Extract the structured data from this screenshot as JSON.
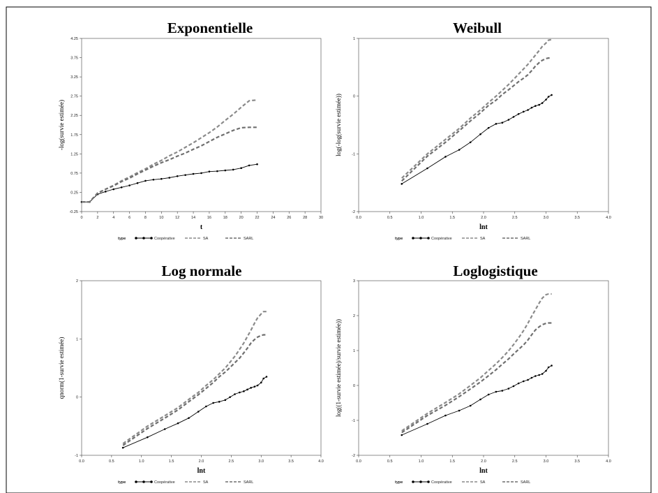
{
  "legend_title": "type",
  "series_names": [
    "Coopérative",
    "SA",
    "SARL"
  ],
  "colors": {
    "cooperative": "#000000",
    "sa": "#8a8a8a",
    "sarl": "#6f6f6f",
    "frame": "#000000",
    "axis": "#444444"
  },
  "chart_data": [
    {
      "type": "line",
      "title": "Exponentielle",
      "xlabel": "t",
      "ylabel": "-log(survie estimée)",
      "xlim": [
        0,
        30
      ],
      "ylim": [
        -0.25,
        4.25
      ],
      "xticks": [
        "0",
        "2",
        "4",
        "6",
        "8",
        "10",
        "12",
        "14",
        "16",
        "18",
        "20",
        "22",
        "24",
        "26",
        "28",
        "30"
      ],
      "yticks": [
        "-0.25",
        "0.25",
        "0.75",
        "1.25",
        "1.75",
        "2.25",
        "2.75",
        "3.25",
        "3.75",
        "4.25"
      ],
      "series": [
        {
          "name": "Coopérative",
          "x": [
            0,
            1,
            2,
            3,
            4,
            5,
            6,
            7,
            8,
            9,
            10,
            11,
            12,
            13,
            14,
            15,
            16,
            17,
            18,
            19,
            20,
            21,
            22
          ],
          "y": [
            0.0,
            0.0,
            0.2,
            0.27,
            0.33,
            0.38,
            0.43,
            0.49,
            0.55,
            0.58,
            0.6,
            0.63,
            0.67,
            0.7,
            0.73,
            0.75,
            0.79,
            0.8,
            0.82,
            0.84,
            0.88,
            0.95,
            0.98
          ]
        },
        {
          "name": "SA",
          "x": [
            0,
            1,
            2,
            3,
            4,
            5,
            6,
            7,
            8,
            9,
            10,
            11,
            12,
            13,
            14,
            15,
            16,
            17,
            18,
            19,
            20,
            21,
            22
          ],
          "y": [
            0.0,
            0.0,
            0.23,
            0.33,
            0.43,
            0.55,
            0.65,
            0.76,
            0.86,
            0.98,
            1.08,
            1.2,
            1.3,
            1.42,
            1.54,
            1.67,
            1.8,
            1.95,
            2.12,
            2.28,
            2.46,
            2.63,
            2.65
          ]
        },
        {
          "name": "SARL",
          "x": [
            0,
            1,
            2,
            3,
            4,
            5,
            6,
            7,
            8,
            9,
            10,
            11,
            12,
            13,
            14,
            15,
            16,
            17,
            18,
            19,
            20,
            21,
            22
          ],
          "y": [
            0.0,
            0.0,
            0.23,
            0.33,
            0.42,
            0.53,
            0.62,
            0.73,
            0.83,
            0.93,
            1.02,
            1.1,
            1.19,
            1.27,
            1.37,
            1.46,
            1.57,
            1.68,
            1.77,
            1.86,
            1.93,
            1.94,
            1.94
          ]
        }
      ]
    },
    {
      "type": "line",
      "title": "Weibull",
      "xlabel": "lnt",
      "ylabel": "log(-log(survie estimée))",
      "xlim": [
        0.0,
        4.0
      ],
      "ylim": [
        -2,
        1
      ],
      "xticks": [
        "0.0",
        "0.5",
        "1.0",
        "1.5",
        "2.0",
        "2.5",
        "3.0",
        "3.5",
        "4.0"
      ],
      "yticks": [
        "-2",
        "-1",
        "0",
        "1"
      ],
      "series": [
        {
          "name": "Coopérative",
          "x": [
            0.69,
            1.1,
            1.39,
            1.61,
            1.79,
            1.95,
            2.08,
            2.2,
            2.3,
            2.4,
            2.48,
            2.56,
            2.64,
            2.71,
            2.77,
            2.83,
            2.89,
            2.94,
            3.0,
            3.04,
            3.09
          ],
          "y": [
            -1.52,
            -1.25,
            -1.05,
            -0.93,
            -0.8,
            -0.66,
            -0.55,
            -0.48,
            -0.46,
            -0.41,
            -0.36,
            -0.31,
            -0.27,
            -0.24,
            -0.2,
            -0.17,
            -0.15,
            -0.12,
            -0.06,
            -0.01,
            0.02
          ]
        },
        {
          "name": "SA",
          "x": [
            0.69,
            1.1,
            1.39,
            1.61,
            1.79,
            1.95,
            2.08,
            2.2,
            2.3,
            2.4,
            2.48,
            2.56,
            2.64,
            2.71,
            2.77,
            2.83,
            2.89,
            2.94,
            3.0,
            3.04,
            3.09
          ],
          "y": [
            -1.42,
            -1.0,
            -0.75,
            -0.56,
            -0.38,
            -0.24,
            -0.11,
            0.0,
            0.1,
            0.2,
            0.29,
            0.38,
            0.47,
            0.55,
            0.63,
            0.71,
            0.79,
            0.86,
            0.92,
            0.97,
            0.98
          ]
        },
        {
          "name": "SARL",
          "x": [
            0.69,
            1.1,
            1.39,
            1.61,
            1.79,
            1.95,
            2.08,
            2.2,
            2.3,
            2.4,
            2.48,
            2.56,
            2.64,
            2.71,
            2.77,
            2.83,
            2.89,
            2.94,
            3.0,
            3.04,
            3.09
          ],
          "y": [
            -1.47,
            -1.04,
            -0.8,
            -0.6,
            -0.43,
            -0.29,
            -0.16,
            -0.07,
            0.03,
            0.11,
            0.18,
            0.25,
            0.31,
            0.37,
            0.44,
            0.52,
            0.58,
            0.62,
            0.65,
            0.66,
            0.66
          ]
        }
      ]
    },
    {
      "type": "line",
      "title": "Log normale",
      "xlabel": "lnt",
      "ylabel": "qnorm(1-survie estimée)",
      "xlim": [
        0.0,
        4.0
      ],
      "ylim": [
        -1,
        2
      ],
      "xticks": [
        "0.0",
        "0.5",
        "1.0",
        "1.5",
        "2.0",
        "2.5",
        "3.0",
        "3.5",
        "4.0"
      ],
      "yticks": [
        "-1",
        "0",
        "1",
        "2"
      ],
      "series": [
        {
          "name": "Coopérative",
          "x": [
            0.69,
            1.1,
            1.39,
            1.61,
            1.79,
            1.95,
            2.08,
            2.2,
            2.3,
            2.4,
            2.48,
            2.56,
            2.64,
            2.71,
            2.77,
            2.83,
            2.89,
            2.94,
            3.0,
            3.04,
            3.09
          ],
          "y": [
            -0.87,
            -0.69,
            -0.55,
            -0.45,
            -0.36,
            -0.25,
            -0.16,
            -0.1,
            -0.08,
            -0.05,
            0.0,
            0.05,
            0.08,
            0.1,
            0.13,
            0.16,
            0.18,
            0.2,
            0.25,
            0.32,
            0.35
          ]
        },
        {
          "name": "SA",
          "x": [
            0.69,
            1.1,
            1.39,
            1.61,
            1.79,
            1.95,
            2.08,
            2.2,
            2.3,
            2.4,
            2.48,
            2.56,
            2.64,
            2.71,
            2.77,
            2.83,
            2.89,
            2.94,
            3.0,
            3.04,
            3.09
          ],
          "y": [
            -0.8,
            -0.5,
            -0.32,
            -0.18,
            -0.04,
            0.08,
            0.2,
            0.3,
            0.4,
            0.5,
            0.6,
            0.7,
            0.82,
            0.93,
            1.04,
            1.15,
            1.27,
            1.36,
            1.43,
            1.47,
            1.47
          ]
        },
        {
          "name": "SARL",
          "x": [
            0.69,
            1.1,
            1.39,
            1.61,
            1.79,
            1.95,
            2.08,
            2.2,
            2.3,
            2.4,
            2.48,
            2.56,
            2.64,
            2.71,
            2.77,
            2.83,
            2.89,
            2.94,
            3.0,
            3.04,
            3.09
          ],
          "y": [
            -0.83,
            -0.54,
            -0.36,
            -0.22,
            -0.08,
            0.04,
            0.15,
            0.25,
            0.35,
            0.43,
            0.51,
            0.59,
            0.67,
            0.76,
            0.84,
            0.93,
            0.99,
            1.03,
            1.06,
            1.07,
            1.07
          ]
        }
      ]
    },
    {
      "type": "line",
      "title": "Loglogistique",
      "xlabel": "lnt",
      "ylabel": "log((1-survie estimée)/survie estimée))",
      "xlim": [
        0.0,
        4.0
      ],
      "ylim": [
        -2,
        3
      ],
      "xticks": [
        "0.0",
        "0.5",
        "1.0",
        "1.5",
        "2.0",
        "2.5",
        "3.0",
        "3.5",
        "4.0"
      ],
      "yticks": [
        "-2",
        "-1",
        "0",
        "1",
        "2",
        "3"
      ],
      "series": [
        {
          "name": "Coopérative",
          "x": [
            0.69,
            1.1,
            1.39,
            1.61,
            1.79,
            1.95,
            2.08,
            2.2,
            2.3,
            2.4,
            2.48,
            2.56,
            2.64,
            2.71,
            2.77,
            2.83,
            2.89,
            2.94,
            3.0,
            3.04,
            3.09
          ],
          "y": [
            -1.42,
            -1.1,
            -0.86,
            -0.72,
            -0.58,
            -0.4,
            -0.26,
            -0.18,
            -0.15,
            -0.09,
            -0.02,
            0.06,
            0.12,
            0.16,
            0.22,
            0.27,
            0.3,
            0.33,
            0.42,
            0.52,
            0.57
          ]
        },
        {
          "name": "SA",
          "x": [
            0.69,
            1.1,
            1.39,
            1.61,
            1.79,
            1.95,
            2.08,
            2.2,
            2.3,
            2.4,
            2.48,
            2.56,
            2.64,
            2.71,
            2.77,
            2.83,
            2.89,
            2.94,
            3.0,
            3.04,
            3.09
          ],
          "y": [
            -1.3,
            -0.8,
            -0.49,
            -0.24,
            0.0,
            0.22,
            0.43,
            0.62,
            0.8,
            0.99,
            1.17,
            1.36,
            1.57,
            1.78,
            1.98,
            2.17,
            2.36,
            2.5,
            2.6,
            2.62,
            2.62
          ]
        },
        {
          "name": "SARL",
          "x": [
            0.69,
            1.1,
            1.39,
            1.61,
            1.79,
            1.95,
            2.08,
            2.2,
            2.3,
            2.4,
            2.48,
            2.56,
            2.64,
            2.71,
            2.77,
            2.83,
            2.89,
            2.94,
            3.0,
            3.04,
            3.09
          ],
          "y": [
            -1.35,
            -0.86,
            -0.57,
            -0.32,
            -0.1,
            0.1,
            0.28,
            0.45,
            0.61,
            0.76,
            0.9,
            1.03,
            1.16,
            1.3,
            1.45,
            1.59,
            1.68,
            1.74,
            1.78,
            1.79,
            1.79
          ]
        }
      ]
    }
  ]
}
